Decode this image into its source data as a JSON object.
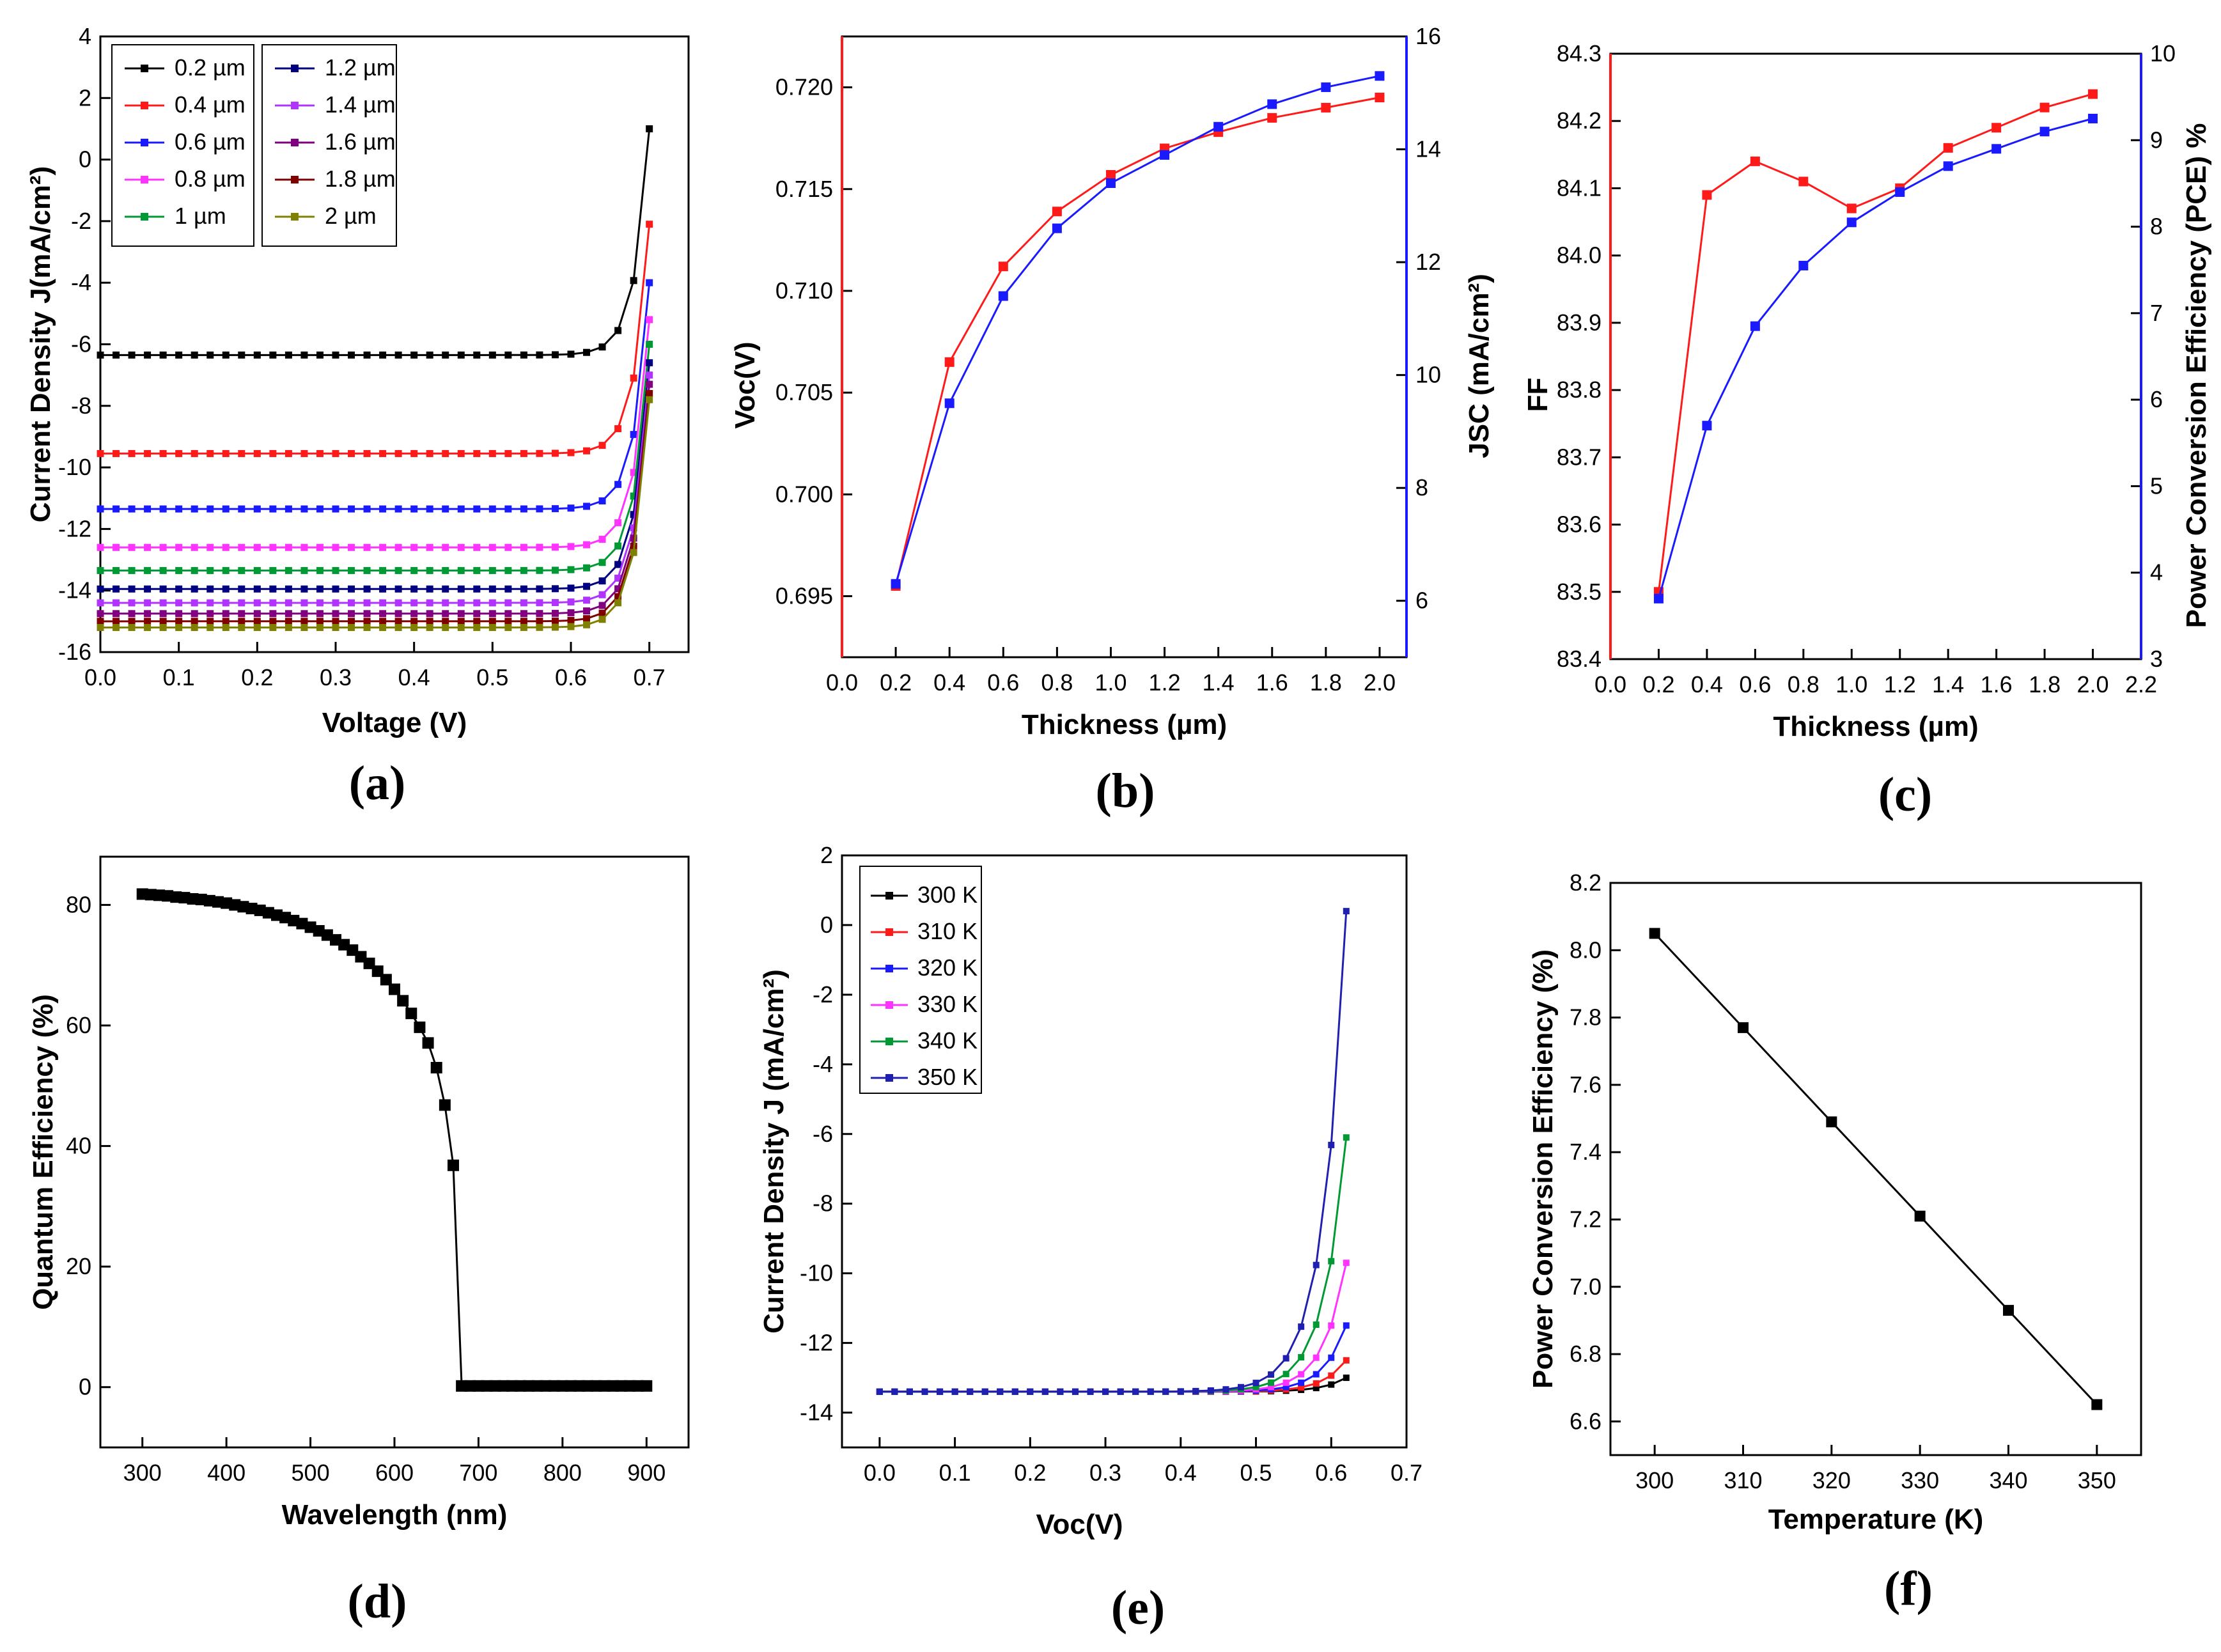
{
  "colors": {
    "black": "#000000",
    "red": "#ff1a1a",
    "blue": "#1a1aff",
    "magenta": "#ff33ff",
    "green": "#009933",
    "navy": "#000080",
    "purple": "#b033ff",
    "plum": "#800080",
    "maroon": "#800000",
    "olive": "#808000",
    "royal": "#1f1fb0"
  },
  "chart_data": [
    {
      "id": "a",
      "type": "line",
      "panel_label": "(a)",
      "xlabel": "Voltage (V)",
      "ylabel": "Current Density  J(mA/cm²)",
      "xlim": [
        0,
        0.75
      ],
      "ylim": [
        -16,
        4
      ],
      "xticks": [
        "0.0",
        "0.1",
        "0.2",
        "0.3",
        "0.4",
        "0.5",
        "0.6",
        "0.7"
      ],
      "yticks": [
        "-16",
        "-14",
        "-12",
        "-10",
        "-8",
        "-6",
        "-4",
        "-2",
        "0",
        "2",
        "4"
      ],
      "series": [
        {
          "name": "0.2 µm",
          "color": "#000000",
          "jsc": -6.35,
          "end": 1.0
        },
        {
          "name": "0.4 µm",
          "color": "#ff1a1a",
          "jsc": -9.55,
          "end": -2.1
        },
        {
          "name": "0.6 µm",
          "color": "#1a1aff",
          "jsc": -11.35,
          "end": -4.0
        },
        {
          "name": "0.8 µm",
          "color": "#ff33ff",
          "jsc": -12.6,
          "end": -5.2
        },
        {
          "name": "1 µm",
          "color": "#009933",
          "jsc": -13.35,
          "end": -6.0
        },
        {
          "name": "1.2 µm",
          "color": "#000080",
          "jsc": -13.95,
          "end": -6.6
        },
        {
          "name": "1.4 µm",
          "color": "#b033ff",
          "jsc": -14.4,
          "end": -7.0
        },
        {
          "name": "1.6 µm",
          "color": "#800080",
          "jsc": -14.75,
          "end": -7.3
        },
        {
          "name": "1.8 µm",
          "color": "#800000",
          "jsc": -15.0,
          "end": -7.6
        },
        {
          "name": "2 µm",
          "color": "#808000",
          "jsc": -15.2,
          "end": -7.8
        }
      ]
    },
    {
      "id": "b",
      "type": "line",
      "panel_label": "(b)",
      "xlabel": "Thickness (µm)",
      "ylabel_left": "Voc(V)",
      "ylabel_right": "JSC (mA/cm²)",
      "xlim": [
        0,
        2.1
      ],
      "ylim_left": [
        0.692,
        0.7225
      ],
      "ylim_right": [
        5,
        16
      ],
      "xticks": [
        "0.0",
        "0.2",
        "0.4",
        "0.6",
        "0.8",
        "1.0",
        "1.2",
        "1.4",
        "1.6",
        "1.8",
        "2.0"
      ],
      "yticks_left": [
        "0.695",
        "0.700",
        "0.705",
        "0.710",
        "0.715",
        "0.720"
      ],
      "yticks_right": [
        "6",
        "8",
        "10",
        "12",
        "14",
        "16"
      ],
      "x": [
        0.2,
        0.4,
        0.6,
        0.8,
        1.0,
        1.2,
        1.4,
        1.6,
        1.8,
        2.0
      ],
      "series": [
        {
          "name": "Voc",
          "axis": "left",
          "color": "#ff1a1a",
          "values": [
            0.6955,
            0.7065,
            0.7112,
            0.7139,
            0.7157,
            0.717,
            0.7178,
            0.7185,
            0.719,
            0.7195
          ]
        },
        {
          "name": "Jsc",
          "axis": "right",
          "color": "#1a1aff",
          "values": [
            6.3,
            9.5,
            11.4,
            12.6,
            13.4,
            13.9,
            14.4,
            14.8,
            15.1,
            15.3
          ]
        }
      ]
    },
    {
      "id": "c",
      "type": "line",
      "panel_label": "(c)",
      "xlabel": "Thickness (µm)",
      "ylabel_left": "FF",
      "ylabel_right": "Power Conversion Efficiency (PCE) %",
      "xlim": [
        0,
        2.2
      ],
      "ylim_left": [
        83.4,
        84.3
      ],
      "ylim_right": [
        3,
        10
      ],
      "xticks": [
        "0.0",
        "0.2",
        "0.4",
        "0.6",
        "0.8",
        "1.0",
        "1.2",
        "1.4",
        "1.6",
        "1.8",
        "2.0",
        "2.2"
      ],
      "yticks_left": [
        "83.4",
        "83.5",
        "83.6",
        "83.7",
        "83.8",
        "83.9",
        "84.0",
        "84.1",
        "84.2",
        "84.3"
      ],
      "yticks_right": [
        "3",
        "4",
        "5",
        "6",
        "7",
        "8",
        "9",
        "10"
      ],
      "x": [
        0.2,
        0.4,
        0.6,
        0.8,
        1.0,
        1.2,
        1.4,
        1.6,
        1.8,
        2.0
      ],
      "series": [
        {
          "name": "FF",
          "axis": "left",
          "color": "#ff1a1a",
          "values": [
            83.5,
            84.09,
            84.14,
            84.11,
            84.07,
            84.1,
            84.16,
            84.19,
            84.22,
            84.24
          ]
        },
        {
          "name": "PCE",
          "axis": "right",
          "color": "#1a1aff",
          "values": [
            3.7,
            5.7,
            6.85,
            7.55,
            8.05,
            8.4,
            8.7,
            8.9,
            9.1,
            9.25
          ]
        }
      ]
    },
    {
      "id": "d",
      "type": "scatter",
      "panel_label": "(d)",
      "xlabel": "Wavelength (nm)",
      "ylabel": "Quantum Efficiency (%)",
      "xlim": [
        250,
        950
      ],
      "ylim": [
        -10,
        88
      ],
      "xticks": [
        "300",
        "400",
        "500",
        "600",
        "700",
        "800",
        "900"
      ],
      "yticks": [
        "0",
        "20",
        "40",
        "60",
        "80"
      ],
      "x": [
        300,
        310,
        320,
        330,
        340,
        350,
        360,
        370,
        380,
        390,
        400,
        410,
        420,
        430,
        440,
        450,
        460,
        470,
        480,
        490,
        500,
        510,
        520,
        530,
        540,
        550,
        560,
        570,
        580,
        590,
        600,
        610,
        620,
        630,
        640,
        650,
        660,
        670,
        680,
        690,
        700,
        710,
        720,
        730,
        740,
        750,
        760,
        770,
        780,
        790,
        800,
        810,
        820,
        830,
        840,
        850,
        860,
        870,
        880,
        890,
        900
      ],
      "values": [
        81.8,
        81.7,
        81.6,
        81.5,
        81.3,
        81.2,
        81.0,
        80.9,
        80.7,
        80.5,
        80.3,
        80.0,
        79.7,
        79.4,
        79.1,
        78.7,
        78.3,
        77.9,
        77.4,
        76.9,
        76.3,
        75.7,
        75.0,
        74.2,
        73.4,
        72.5,
        71.4,
        70.3,
        69.0,
        67.6,
        66.0,
        64.1,
        62.0,
        59.7,
        57.1,
        53.0,
        46.8,
        36.8,
        0.2,
        0.2,
        0.2,
        0.2,
        0.2,
        0.2,
        0.2,
        0.2,
        0.2,
        0.2,
        0.2,
        0.2,
        0.2,
        0.2,
        0.2,
        0.2,
        0.2,
        0.2,
        0.2,
        0.2,
        0.2,
        0.2,
        0.2
      ]
    },
    {
      "id": "e",
      "type": "line",
      "panel_label": "(e)",
      "xlabel": "Voc(V)",
      "ylabel": "Current Density  J (mA/cm²)",
      "xlim": [
        -0.05,
        0.7
      ],
      "ylim": [
        -15,
        2
      ],
      "xticks": [
        "0.0",
        "0.1",
        "0.2",
        "0.3",
        "0.4",
        "0.5",
        "0.6",
        "0.7"
      ],
      "yticks": [
        "-14",
        "-12",
        "-10",
        "-8",
        "-6",
        "-4",
        "-2",
        "0",
        "2"
      ],
      "jsc": -13.4,
      "series": [
        {
          "name": "300 K",
          "color": "#000000",
          "end": -13.0,
          "vmax": 0.62
        },
        {
          "name": "310 K",
          "color": "#ff1a1a",
          "end": -12.5,
          "vmax": 0.62
        },
        {
          "name": "320 K",
          "color": "#1a1aff",
          "end": -11.5,
          "vmax": 0.62
        },
        {
          "name": "330 K",
          "color": "#ff33ff",
          "end": -9.7,
          "vmax": 0.62
        },
        {
          "name": "340 K",
          "color": "#009933",
          "end": -6.1,
          "vmax": 0.62
        },
        {
          "name": "350 K",
          "color": "#1f1fb0",
          "end": 0.4,
          "vmax": 0.62
        }
      ]
    },
    {
      "id": "f",
      "type": "line",
      "panel_label": "(f)",
      "xlabel": "Temperature (K)",
      "ylabel": "Power Conversion Efficiency (%)",
      "xlim": [
        295,
        355
      ],
      "ylim": [
        6.5,
        8.2
      ],
      "xticks": [
        "300",
        "310",
        "320",
        "330",
        "340",
        "350"
      ],
      "yticks": [
        "6.6",
        "6.8",
        "7.0",
        "7.2",
        "7.4",
        "7.6",
        "7.8",
        "8.0",
        "8.2"
      ],
      "x": [
        300,
        310,
        320,
        330,
        340,
        350
      ],
      "values": [
        8.05,
        7.77,
        7.49,
        7.21,
        6.93,
        6.65
      ]
    }
  ]
}
